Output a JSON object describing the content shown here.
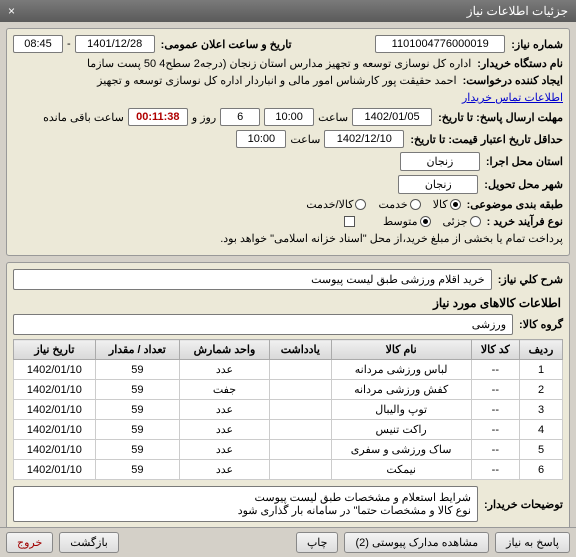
{
  "window": {
    "title": "جزئیات اطلاعات نیاز",
    "close": "×"
  },
  "header": {
    "need_no_label": "شماره نیاز:",
    "need_no": "1101004776000019",
    "public_dt_label": "تاریخ و ساعت اعلان عمومی:",
    "public_date": "1401/12/28",
    "public_time": "08:45",
    "buyer_org_label": "نام دستگاه خریدار:",
    "buyer_org": "اداره کل نوسازی  توسعه و تجهیز مدارس استان زنجان (درجه2  سطح4  50 پست سازما",
    "requester_label": "ایجاد کننده درخواست:",
    "requester": "احمد حقیقت پور کارشناس امور مالی و انباردار اداره کل نوسازی  توسعه و تجهیز",
    "contact_link": "اطلاعات تماس خریدار",
    "deadline_label": "مهلت ارسال پاسخ:  تا تاریخ:",
    "deadline_date": "1402/01/05",
    "time_word": "ساعت",
    "deadline_time": "10:00",
    "day_word": "روز و",
    "days": "6",
    "countdown": "00:11:38",
    "remain_label": "ساعت باقی مانده",
    "price_valid_label": "حداقل تاریخ اعتبار قیمت: تا تاریخ:",
    "price_valid_date": "1402/12/10",
    "price_valid_time": "10:00",
    "exec_province_label": "استان محل اجرا:",
    "exec_province": "زنجان",
    "deliver_city_label": "شهر محل تحویل:",
    "deliver_city": "زنجان",
    "subject_cat_label": "طبقه بندی موضوعی:",
    "cat_goods": "کالا",
    "cat_service": "خدمت",
    "cat_both": "کالا/خدمت",
    "process_label": "نوع فرآیند خرید :",
    "proc_small": "جزئی",
    "proc_medium": "متوسط",
    "pay_note": "پرداخت تمام یا بخشی از مبلغ خرید،از محل \"اسناد خزانه اسلامی\" خواهد بود."
  },
  "desc": {
    "title_label": "شرح كلي نياز:",
    "title_value": "خرید اقلام ورزشی طبق لیست پیوست",
    "goods_section": "اطلاعات کالاهای مورد نیاز",
    "group_label": "گروه کالا:",
    "group_value": "ورزشی"
  },
  "table": {
    "cols": [
      "ردیف",
      "کد کالا",
      "نام کالا",
      "یادداشت",
      "واحد شمارش",
      "تعداد / مقدار",
      "تاریخ نیاز"
    ],
    "rows": [
      [
        "1",
        "--",
        "لباس ورزشی مردانه",
        "",
        "عدد",
        "59",
        "1402/01/10"
      ],
      [
        "2",
        "--",
        "کفش ورزشی مردانه",
        "",
        "جفت",
        "59",
        "1402/01/10"
      ],
      [
        "3",
        "--",
        "توپ والیبال",
        "",
        "عدد",
        "59",
        "1402/01/10"
      ],
      [
        "4",
        "--",
        "راکت تنیس",
        "",
        "عدد",
        "59",
        "1402/01/10"
      ],
      [
        "5",
        "--",
        "ساک ورزشی و سفری",
        "",
        "عدد",
        "59",
        "1402/01/10"
      ],
      [
        "6",
        "--",
        "نیمکت",
        "",
        "عدد",
        "59",
        "1402/01/10"
      ]
    ]
  },
  "notes": {
    "label": "توضیحات خریدار:",
    "line1": "شرایط استعلام و مشخصات  طبق لیست پیوست",
    "line2": "نوع کالا و مشخصات حتما\" در سامانه بار گذاری شود"
  },
  "footer": {
    "reply": "پاسخ به نیاز",
    "attach": "مشاهده مدارک پیوستی (2)",
    "print": "چاپ",
    "back": "بازگشت",
    "exit": "خروج"
  },
  "colors": {
    "bg": "#d4d0c8",
    "panel": "#ece9d8",
    "border": "#7a7a7a",
    "link": "#0000cc",
    "countdown": "#b00000"
  }
}
